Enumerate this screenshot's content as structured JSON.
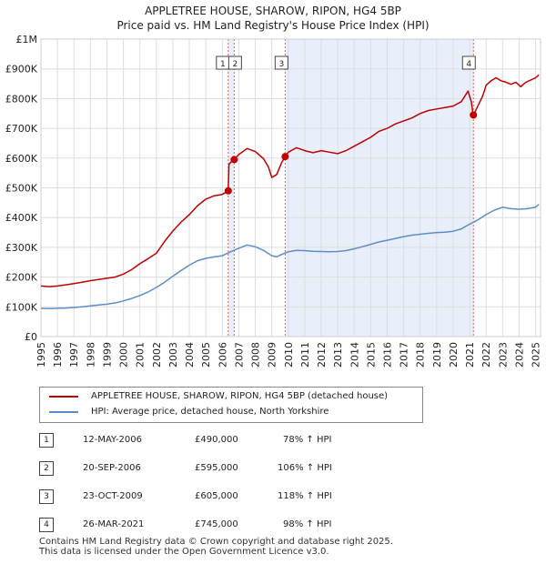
{
  "title_line1": "APPLETREE HOUSE, SHAROW, RIPON, HG4 5BP",
  "title_line2": "Price paid vs. HM Land Registry's House Price Index (HPI)",
  "colors": {
    "property": "#c00000",
    "hpi": "#5b8ec9",
    "shade": "#e8eefa",
    "vline": "#e06060",
    "grid": "#dddddd"
  },
  "chart_data": {
    "type": "line",
    "title": "Price paid vs. HM Land Registry's House Price Index (HPI)",
    "xlim": [
      1995,
      2025.3
    ],
    "ylim": [
      0,
      1000000
    ],
    "y_ticks": [
      0,
      100000,
      200000,
      300000,
      400000,
      500000,
      600000,
      700000,
      800000,
      900000,
      1000000
    ],
    "y_tick_labels": [
      "£0",
      "£100K",
      "£200K",
      "£300K",
      "£400K",
      "£500K",
      "£600K",
      "£700K",
      "£800K",
      "£900K",
      "£1M"
    ],
    "x_ticks": [
      1995,
      1996,
      1997,
      1998,
      1999,
      2000,
      2001,
      2002,
      2003,
      2004,
      2005,
      2006,
      2007,
      2008,
      2009,
      2010,
      2011,
      2012,
      2013,
      2014,
      2015,
      2016,
      2017,
      2018,
      2019,
      2020,
      2021,
      2022,
      2023,
      2024,
      2025
    ],
    "x_tick_labels": [
      "1995",
      "1996",
      "1997",
      "1998",
      "1999",
      "2000",
      "2001",
      "2002",
      "2003",
      "2004",
      "2005",
      "2006",
      "2007",
      "2008",
      "2009",
      "2010",
      "2011",
      "2012",
      "2013",
      "2014",
      "2015",
      "2016",
      "2017",
      "2018",
      "2019",
      "2020",
      "2021",
      "2022",
      "2023",
      "2024",
      "2025"
    ],
    "shaded_periods": [
      [
        2006.36,
        2006.72
      ],
      [
        2009.81,
        2021.23
      ]
    ],
    "series": [
      {
        "name": "APPLETREE HOUSE, SHAROW, RIPON, HG4 5BP (detached house)",
        "x": [
          1995.0,
          1995.5,
          1996.0,
          1996.5,
          1997.0,
          1997.5,
          1998.0,
          1998.5,
          1999.0,
          1999.5,
          2000.0,
          2000.5,
          2001.0,
          2001.5,
          2002.0,
          2002.5,
          2003.0,
          2003.5,
          2004.0,
          2004.5,
          2005.0,
          2005.5,
          2006.0,
          2006.36,
          2006.4,
          2006.6,
          2006.72,
          2007.0,
          2007.5,
          2008.0,
          2008.5,
          2008.8,
          2009.0,
          2009.3,
          2009.6,
          2009.81,
          2010.0,
          2010.5,
          2011.0,
          2011.5,
          2012.0,
          2012.5,
          2013.0,
          2013.5,
          2014.0,
          2014.5,
          2015.0,
          2015.5,
          2016.0,
          2016.5,
          2017.0,
          2017.5,
          2018.0,
          2018.5,
          2019.0,
          2019.5,
          2020.0,
          2020.5,
          2020.9,
          2021.1,
          2021.2,
          2021.23,
          2021.5,
          2021.8,
          2022.0,
          2022.3,
          2022.6,
          2022.9,
          2023.2,
          2023.5,
          2023.8,
          2024.1,
          2024.4,
          2024.7,
          2025.0,
          2025.2
        ],
        "y": [
          170000,
          168000,
          170000,
          174000,
          178000,
          183000,
          188000,
          192000,
          196000,
          200000,
          210000,
          225000,
          245000,
          262000,
          280000,
          320000,
          355000,
          385000,
          410000,
          440000,
          462000,
          473000,
          478000,
          490000,
          580000,
          590000,
          595000,
          612000,
          632000,
          622000,
          598000,
          570000,
          535000,
          545000,
          585000,
          605000,
          620000,
          635000,
          625000,
          618000,
          625000,
          620000,
          615000,
          625000,
          640000,
          655000,
          670000,
          690000,
          700000,
          715000,
          725000,
          735000,
          750000,
          760000,
          765000,
          770000,
          775000,
          790000,
          825000,
          790000,
          750000,
          745000,
          775000,
          810000,
          845000,
          860000,
          870000,
          860000,
          855000,
          848000,
          855000,
          840000,
          855000,
          862000,
          870000,
          880000
        ]
      },
      {
        "name": "HPI: Average price, detached house, North Yorkshire",
        "x": [
          1995.0,
          1995.5,
          1996.0,
          1996.5,
          1997.0,
          1997.5,
          1998.0,
          1998.5,
          1999.0,
          1999.5,
          2000.0,
          2000.5,
          2001.0,
          2001.5,
          2002.0,
          2002.5,
          2003.0,
          2003.5,
          2004.0,
          2004.5,
          2005.0,
          2005.5,
          2006.0,
          2006.5,
          2007.0,
          2007.5,
          2008.0,
          2008.5,
          2009.0,
          2009.3,
          2009.6,
          2010.0,
          2010.5,
          2011.0,
          2011.5,
          2012.0,
          2012.5,
          2013.0,
          2013.5,
          2014.0,
          2014.5,
          2015.0,
          2015.5,
          2016.0,
          2016.5,
          2017.0,
          2017.5,
          2018.0,
          2018.5,
          2019.0,
          2019.5,
          2020.0,
          2020.5,
          2021.0,
          2021.5,
          2022.0,
          2022.5,
          2023.0,
          2023.5,
          2024.0,
          2024.5,
          2025.0,
          2025.2
        ],
        "y": [
          95000,
          94000,
          95000,
          96000,
          98000,
          100000,
          103000,
          106000,
          109000,
          113000,
          120000,
          128000,
          138000,
          150000,
          165000,
          183000,
          203000,
          222000,
          240000,
          255000,
          263000,
          268000,
          272000,
          285000,
          297000,
          308000,
          302000,
          290000,
          272000,
          268000,
          276000,
          285000,
          290000,
          289000,
          287000,
          286000,
          285000,
          286000,
          289000,
          295000,
          302000,
          310000,
          318000,
          324000,
          330000,
          336000,
          341000,
          344000,
          347000,
          350000,
          351000,
          354000,
          362000,
          378000,
          392000,
          410000,
          425000,
          435000,
          430000,
          428000,
          430000,
          435000,
          445000
        ]
      }
    ],
    "sale_points": [
      {
        "label": "1",
        "x": 2006.36,
        "y": 490000
      },
      {
        "label": "2",
        "x": 2006.72,
        "y": 595000
      },
      {
        "label": "3",
        "x": 2009.81,
        "y": 605000
      },
      {
        "label": "4",
        "x": 2021.23,
        "y": 745000
      }
    ]
  },
  "legend": {
    "property_label": "APPLETREE HOUSE, SHAROW, RIPON, HG4 5BP (detached house)",
    "hpi_label": "HPI: Average price, detached house, North Yorkshire"
  },
  "sales": [
    {
      "num": "1",
      "date": "12-MAY-2006",
      "price": "£490,000",
      "hpi": "78% ↑ HPI"
    },
    {
      "num": "2",
      "date": "20-SEP-2006",
      "price": "£595,000",
      "hpi": "106% ↑ HPI"
    },
    {
      "num": "3",
      "date": "23-OCT-2009",
      "price": "£605,000",
      "hpi": "118% ↑ HPI"
    },
    {
      "num": "4",
      "date": "26-MAR-2021",
      "price": "£745,000",
      "hpi": "98% ↑ HPI"
    }
  ],
  "footer_line1": "Contains HM Land Registry data © Crown copyright and database right 2025.",
  "footer_line2": "This data is licensed under the Open Government Licence v3.0."
}
